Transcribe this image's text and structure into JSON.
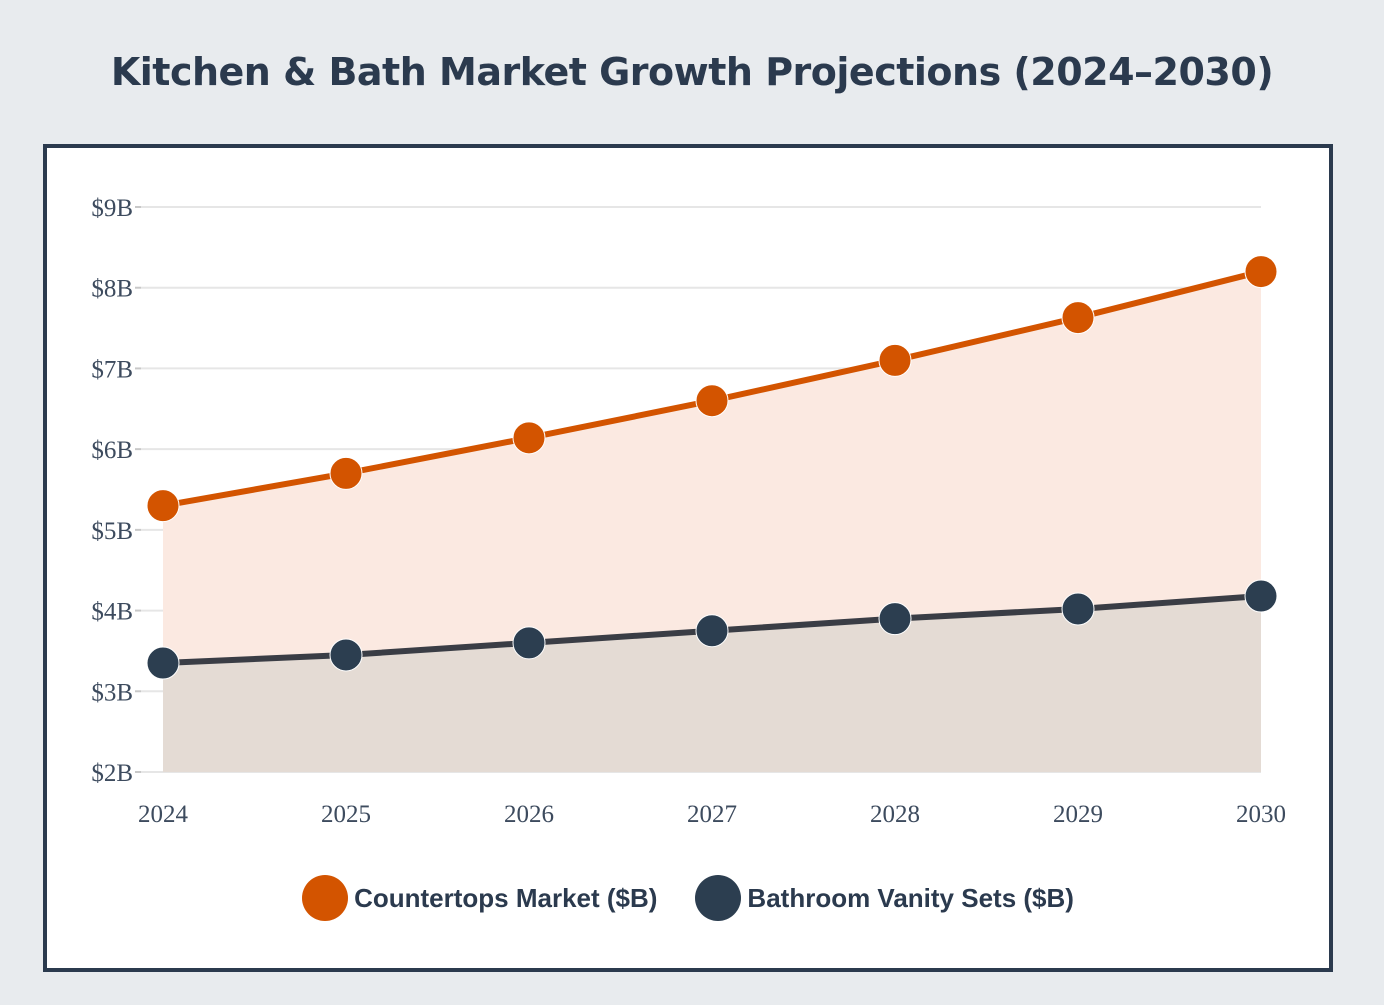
{
  "title": "Kitchen & Bath Market Growth Projections (2024–2030)",
  "chart_data": {
    "type": "area",
    "title": "Kitchen & Bath Market Growth Projections (2024–2030)",
    "xlabel": "",
    "ylabel": "",
    "categories": [
      "2024",
      "2025",
      "2026",
      "2027",
      "2028",
      "2029",
      "2030"
    ],
    "ylim": [
      2,
      9
    ],
    "yticks": [
      2,
      3,
      4,
      5,
      6,
      7,
      8,
      9
    ],
    "ytick_labels": [
      "$2B",
      "$3B",
      "$4B",
      "$5B",
      "$6B",
      "$7B",
      "$8B",
      "$9B"
    ],
    "grid": true,
    "legend_position": "bottom-center",
    "series": [
      {
        "name": "Countertops Market ($B)",
        "values": [
          5.3,
          5.7,
          6.14,
          6.6,
          7.1,
          7.63,
          8.2
        ],
        "color": "#d35400",
        "fill": "#fbe9e1"
      },
      {
        "name": "Bathroom Vanity Sets ($B)",
        "values": [
          3.35,
          3.45,
          3.6,
          3.75,
          3.9,
          4.02,
          4.18
        ],
        "color": "#2c3e50",
        "line_color": "#3a3d45",
        "fill": "#e4dbd4"
      }
    ]
  }
}
